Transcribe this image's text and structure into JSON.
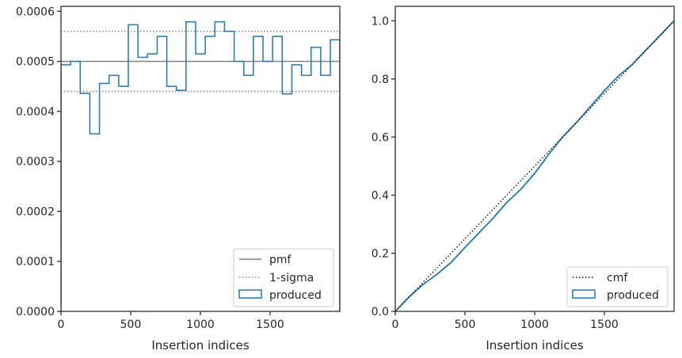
{
  "chart_data": [
    {
      "type": "step",
      "xlabel": "Insertion indices",
      "ylabel": "",
      "xlim": [
        0,
        2000
      ],
      "ylim": [
        0,
        0.00061
      ],
      "x_ticks": [
        0,
        500,
        1000,
        1500
      ],
      "x_tick_labels": [
        "0",
        "500",
        "1000",
        "1500"
      ],
      "y_ticks": [
        0,
        0.0001,
        0.0002,
        0.0003,
        0.0004,
        0.0005,
        0.0006
      ],
      "y_tick_labels": [
        "0.0000",
        "0.0001",
        "0.0002",
        "0.0003",
        "0.0004",
        "0.0005",
        "0.0006"
      ],
      "grid": false,
      "legend_position": "bottom-right",
      "reference_lines": [
        {
          "name": "pmf",
          "y": 0.0005,
          "style": "solid",
          "color": "#808080"
        },
        {
          "name": "1-sigma",
          "y": 0.00056,
          "style": "dotted",
          "color": "#808080"
        },
        {
          "name": "1-sigma",
          "y": 0.00044,
          "style": "dotted",
          "color": "#808080"
        }
      ],
      "series": [
        {
          "name": "produced",
          "color": "#1f77b4",
          "bin_edges": [
            0,
            69,
            138,
            207,
            276,
            345,
            414,
            483,
            552,
            621,
            690,
            759,
            828,
            897,
            966,
            1035,
            1104,
            1173,
            1242,
            1311,
            1380,
            1449,
            1518,
            1587,
            1656,
            1725,
            1794,
            1863,
            1932,
            2000
          ],
          "values": [
            0.000493,
            0.0005,
            0.000436,
            0.000355,
            0.000456,
            0.000472,
            0.00045,
            0.000573,
            0.000508,
            0.000515,
            0.00055,
            0.00045,
            0.000442,
            0.000579,
            0.000515,
            0.00055,
            0.000579,
            0.00056,
            0.0005,
            0.000472,
            0.00055,
            0.0005,
            0.00055,
            0.000435,
            0.000493,
            0.000472,
            0.000528,
            0.000472,
            0.000543
          ]
        }
      ],
      "legend": [
        "pmf",
        "1-sigma",
        "produced"
      ]
    },
    {
      "type": "line",
      "xlabel": "Insertion indices",
      "ylabel": "",
      "xlim": [
        0,
        2000
      ],
      "ylim": [
        0,
        1.05
      ],
      "x_ticks": [
        0,
        500,
        1000,
        1500
      ],
      "x_tick_labels": [
        "0",
        "500",
        "1000",
        "1500"
      ],
      "y_ticks": [
        0,
        0.2,
        0.4,
        0.6,
        0.8,
        1.0
      ],
      "y_tick_labels": [
        "0.0",
        "0.2",
        "0.4",
        "0.6",
        "0.8",
        "1.0"
      ],
      "grid": false,
      "legend_position": "bottom-right",
      "series": [
        {
          "name": "produced",
          "color": "#1f77b4",
          "x": [
            0,
            100,
            200,
            300,
            400,
            500,
            600,
            700,
            800,
            900,
            1000,
            1100,
            1200,
            1300,
            1400,
            1500,
            1600,
            1700,
            1800,
            1900,
            2000
          ],
          "y": [
            0,
            0.05,
            0.093,
            0.128,
            0.168,
            0.22,
            0.27,
            0.32,
            0.375,
            0.42,
            0.475,
            0.54,
            0.6,
            0.65,
            0.705,
            0.76,
            0.81,
            0.85,
            0.9,
            0.95,
            1.0
          ]
        },
        {
          "name": "cmf",
          "color": "#000000",
          "style": "dotted",
          "x": [
            0,
            2000
          ],
          "y": [
            0,
            1.0
          ]
        }
      ],
      "legend": [
        "cmf",
        "produced"
      ]
    }
  ]
}
